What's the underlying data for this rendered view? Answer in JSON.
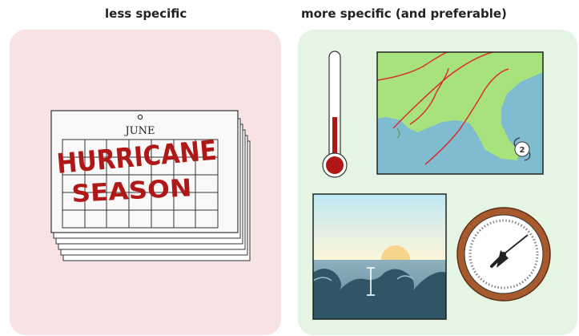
{
  "headings": {
    "left": "less specific",
    "right": "more specific (and preferable)"
  },
  "calendar": {
    "month": "JUNE",
    "scrawl_line1": "HURRICANE",
    "scrawl_line2": "SEASON"
  },
  "hurricane_marker": "2",
  "icons": {
    "calendar": "calendar-icon",
    "thermometer": "thermometer-icon",
    "map": "weather-map-icon",
    "ocean": "ocean-waves-icon",
    "barometer": "barometer-icon"
  },
  "colors": {
    "left_panel": "#f7e3e4",
    "right_panel": "#e4f6e3",
    "scrawl": "#b01818",
    "land": "#a8e27c",
    "water": "#7fbcd0",
    "front_lines": "#d83030"
  }
}
